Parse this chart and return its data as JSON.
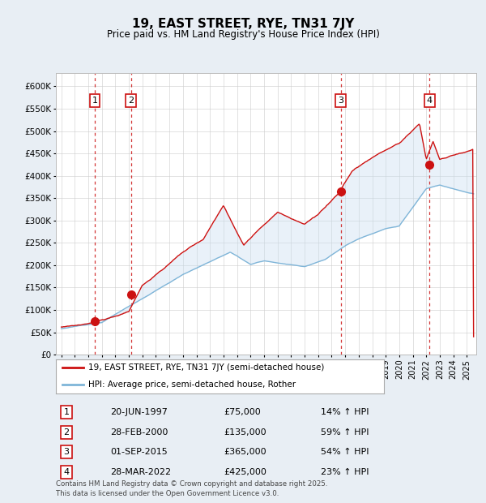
{
  "title": "19, EAST STREET, RYE, TN31 7JY",
  "subtitle": "Price paid vs. HM Land Registry's House Price Index (HPI)",
  "ylabel_ticks": [
    "£0",
    "£50K",
    "£100K",
    "£150K",
    "£200K",
    "£250K",
    "£300K",
    "£350K",
    "£400K",
    "£450K",
    "£500K",
    "£550K",
    "£600K"
  ],
  "ytick_values": [
    0,
    50000,
    100000,
    150000,
    200000,
    250000,
    300000,
    350000,
    400000,
    450000,
    500000,
    550000,
    600000
  ],
  "ylim": [
    0,
    630000
  ],
  "xlim_start": 1994.6,
  "xlim_end": 2025.7,
  "sale_dates": [
    1997.47,
    2000.16,
    2015.67,
    2022.24
  ],
  "sale_prices": [
    75000,
    135000,
    365000,
    425000
  ],
  "sale_labels": [
    "1",
    "2",
    "3",
    "4"
  ],
  "hpi_line_color": "#7fb5d8",
  "price_line_color": "#cc1111",
  "sale_dot_color": "#cc1111",
  "dashed_line_color": "#cc1111",
  "shade_color": "#c8ddf0",
  "legend_label_price": "19, EAST STREET, RYE, TN31 7JY (semi-detached house)",
  "legend_label_hpi": "HPI: Average price, semi-detached house, Rother",
  "table_data": [
    [
      "1",
      "20-JUN-1997",
      "£75,000",
      "14% ↑ HPI"
    ],
    [
      "2",
      "28-FEB-2000",
      "£135,000",
      "59% ↑ HPI"
    ],
    [
      "3",
      "01-SEP-2015",
      "£365,000",
      "54% ↑ HPI"
    ],
    [
      "4",
      "28-MAR-2022",
      "£425,000",
      "23% ↑ HPI"
    ]
  ],
  "footer": "Contains HM Land Registry data © Crown copyright and database right 2025.\nThis data is licensed under the Open Government Licence v3.0.",
  "background_color": "#e8eef4",
  "plot_bg_color": "#ffffff",
  "grid_color": "#cccccc",
  "legend_box_color": "#ffffff"
}
